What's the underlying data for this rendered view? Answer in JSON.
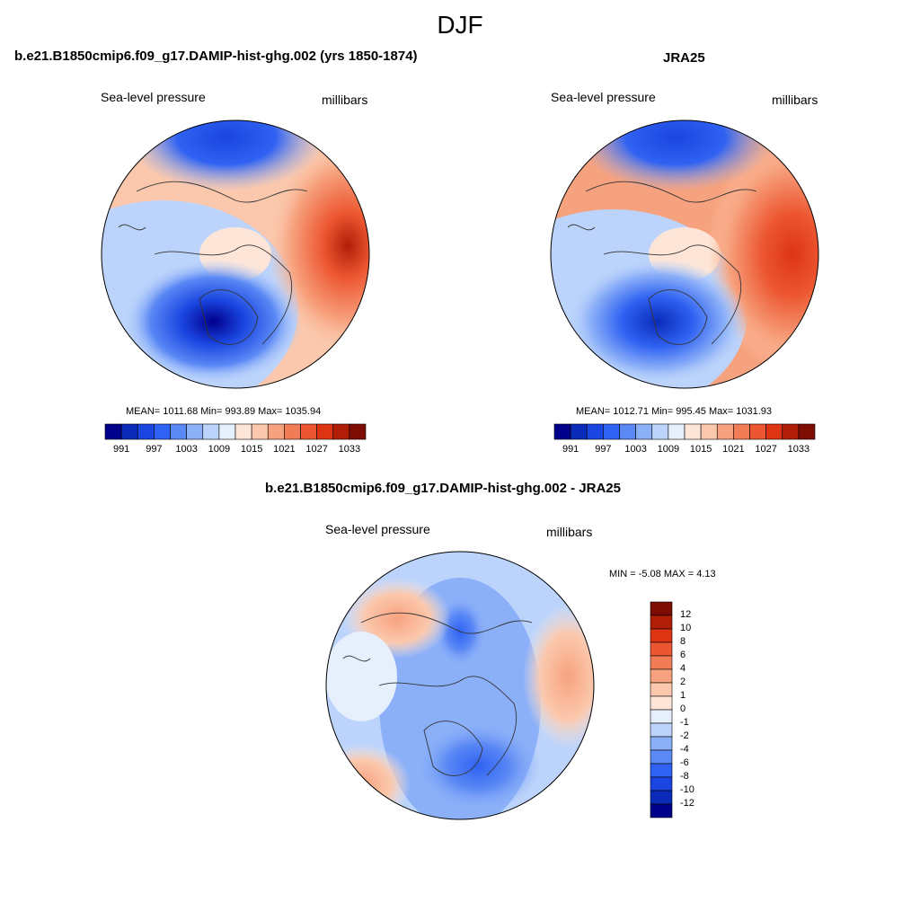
{
  "title": "DJF",
  "panel_left": {
    "title": "b.e21.B1850cmip6.f09_g17.DAMIP-hist-ghg.002 (yrs 1850-1874)",
    "left_label": "Sea-level pressure",
    "right_label": "millibars",
    "stats": "MEAN= 1011.68  Min= 993.89  Max= 1035.94"
  },
  "panel_right": {
    "title": "JRA25",
    "left_label": "Sea-level pressure",
    "right_label": "millibars",
    "stats": "MEAN= 1012.71  Min= 995.45  Max= 1031.93"
  },
  "panel_diff": {
    "title": "b.e21.B1850cmip6.f09_g17.DAMIP-hist-ghg.002 - JRA25",
    "left_label": "Sea-level pressure",
    "right_label": "millibars",
    "stats": "MIN =  -5.08 MAX =   4.13"
  },
  "colorbar_abs": {
    "colors": [
      "#00008b",
      "#0a2ab8",
      "#1a45e0",
      "#2f62f2",
      "#5a88f5",
      "#8cb0f8",
      "#bcd4fb",
      "#e6effc",
      "#fde6d8",
      "#fbc8ad",
      "#f7a27e",
      "#f27c55",
      "#ec5630",
      "#dd3414",
      "#b01e08",
      "#7d0c02"
    ],
    "tick_labels": [
      "991",
      "997",
      "1003",
      "1009",
      "1015",
      "1021",
      "1027",
      "1033"
    ]
  },
  "colorbar_diff": {
    "colors": [
      "#00008b",
      "#0a2ab8",
      "#1a45e0",
      "#2f62f2",
      "#5a88f5",
      "#8cb0f8",
      "#bcd4fb",
      "#e6effc",
      "#fde6d8",
      "#fbc8ad",
      "#f7a27e",
      "#f27c55",
      "#ec5630",
      "#dd3414",
      "#b01e08",
      "#7d0c02"
    ],
    "tick_labels": [
      "12",
      "10",
      "8",
      "6",
      "4",
      "2",
      "1",
      "0",
      "-1",
      "-2",
      "-4",
      "-6",
      "-8",
      "-10",
      "-12"
    ]
  }
}
